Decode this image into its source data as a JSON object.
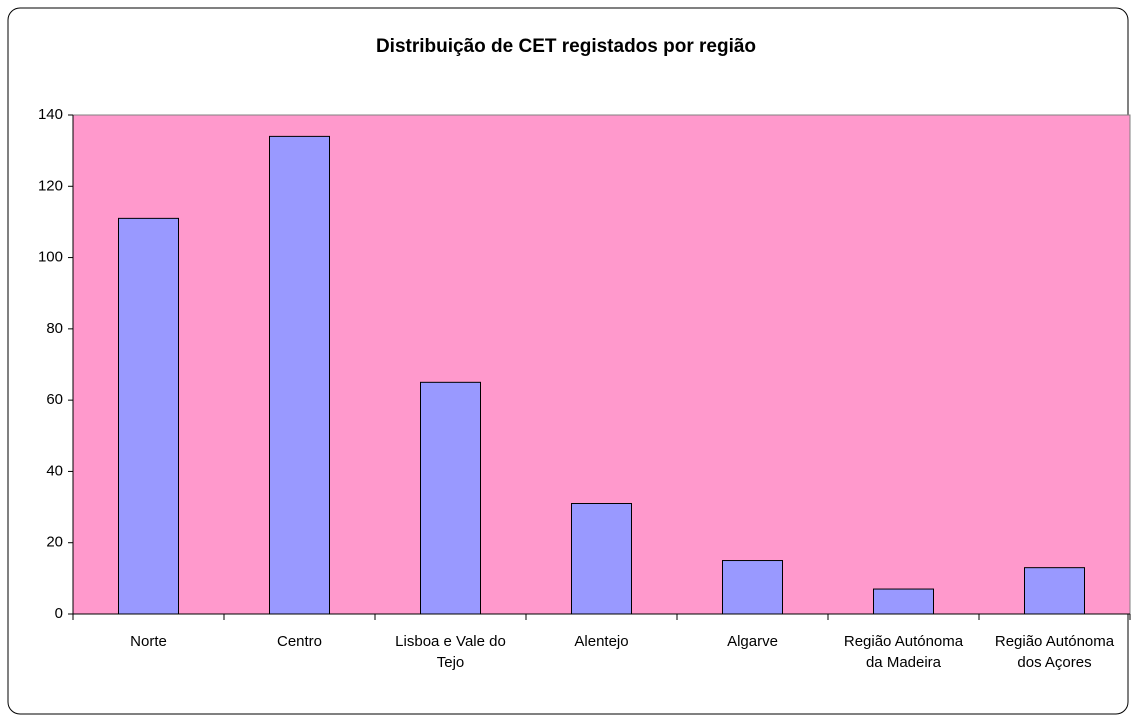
{
  "chart_data": {
    "type": "bar",
    "title": "Distribuição de CET registados por região",
    "categories": [
      "Norte",
      "Centro",
      "Lisboa e Vale do Tejo",
      "Alentejo",
      "Algarve",
      "Região Autónoma da Madeira",
      "Região Autónoma dos Açores"
    ],
    "values": [
      111,
      134,
      65,
      31,
      15,
      7,
      13
    ],
    "color": "#9999ff",
    "plot_background": "#ff99cc",
    "ylim": [
      0,
      140
    ],
    "yticks": [
      0,
      20,
      40,
      60,
      80,
      100,
      120,
      140
    ],
    "grid": false
  }
}
